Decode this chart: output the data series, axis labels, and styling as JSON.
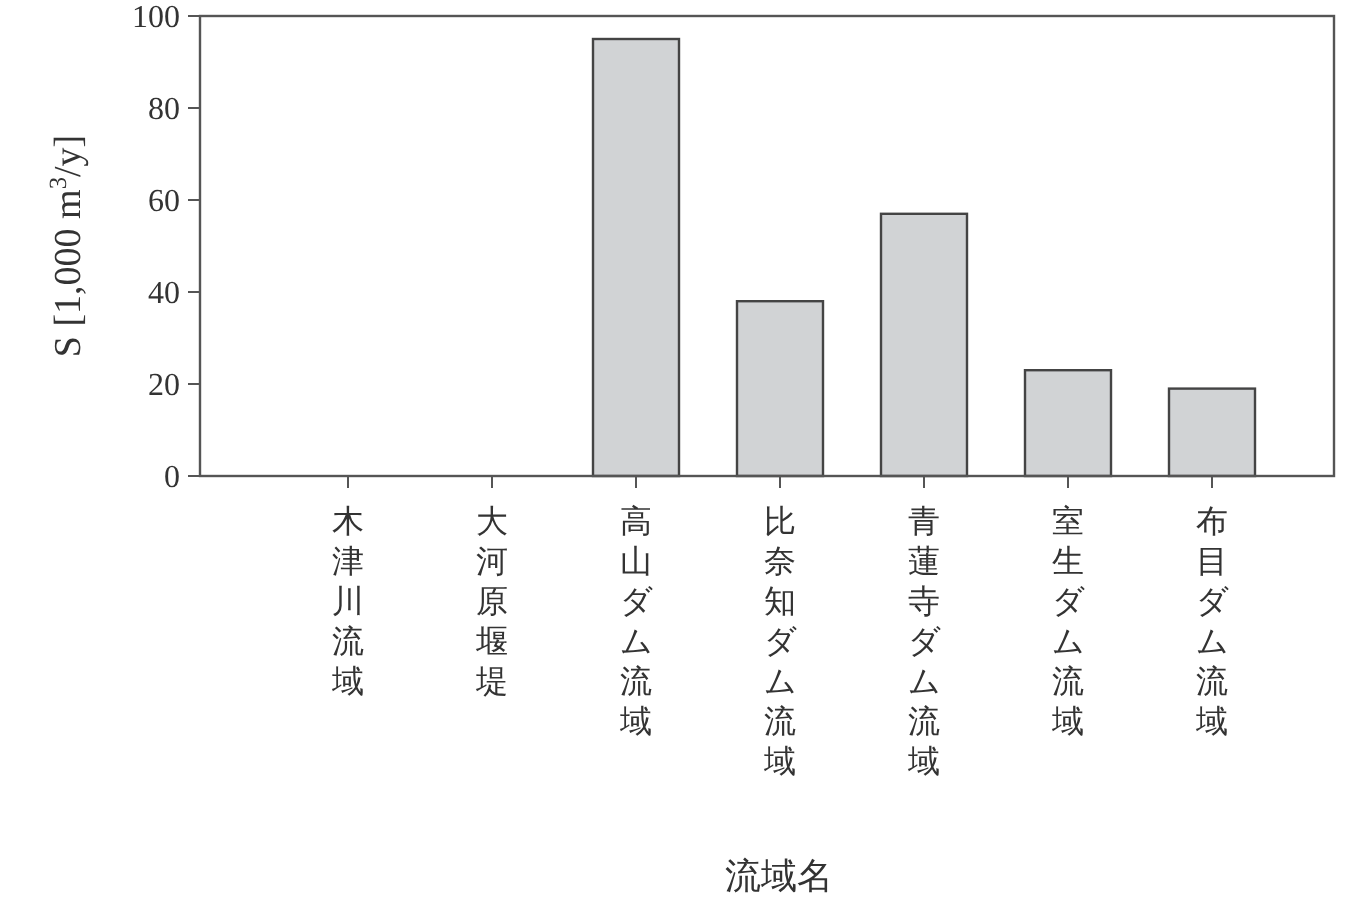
{
  "chart_data": {
    "type": "bar",
    "xlabel": "流域名",
    "ylabel": "S [1,000 m$^{3}$/y]",
    "categories": [
      "木津川流域",
      "大河原堰堤",
      "高山ダム流域",
      "比奈知ダム流域",
      "青蓮寺ダム流域",
      "室生ダム流域",
      "布目ダム流域"
    ],
    "values": [
      0,
      0,
      95,
      38,
      57,
      23,
      19
    ],
    "color": "#d1d3d5",
    "ylim": [
      0,
      100
    ],
    "yticks": [
      0,
      20,
      40,
      60,
      80,
      100
    ],
    "grid": false
  }
}
